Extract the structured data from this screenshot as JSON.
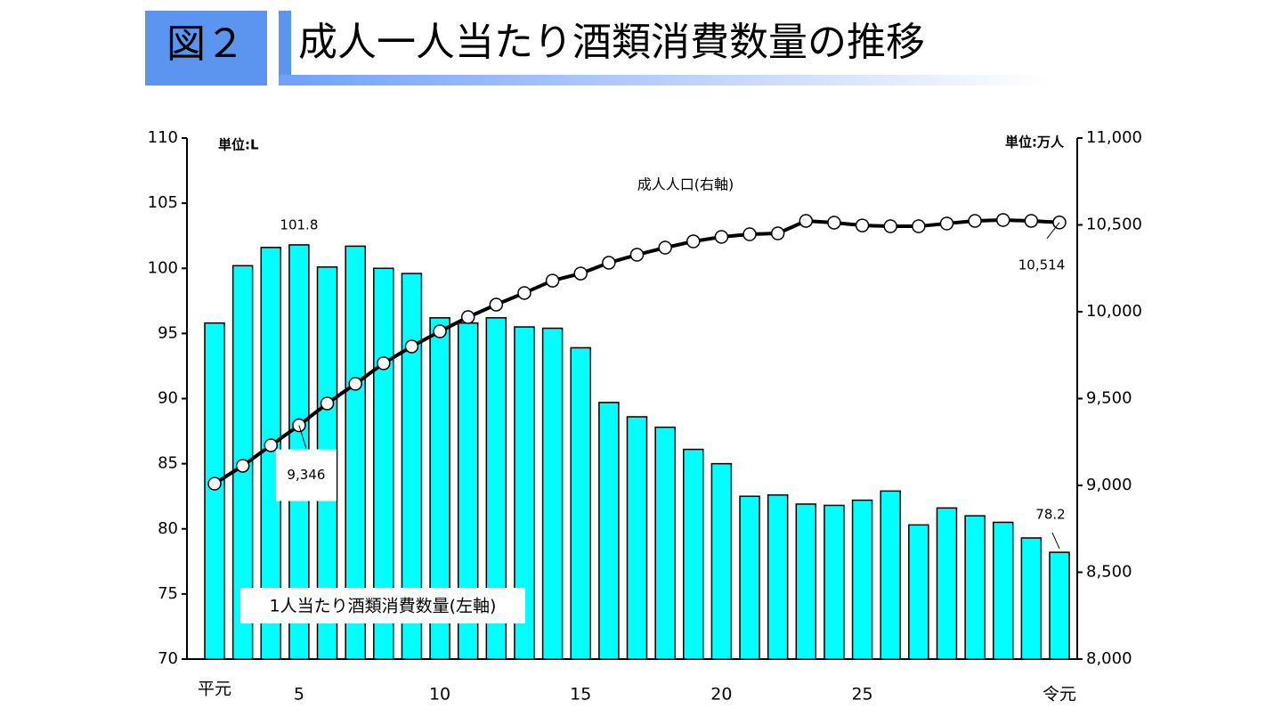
{
  "header": {
    "figure_label": "図２",
    "title": "成人一人当たり酒類消費数量の推移"
  },
  "chart_data": {
    "type": "bar_line",
    "categories": [
      "平元",
      null,
      null,
      "5",
      null,
      null,
      null,
      null,
      "10",
      null,
      null,
      null,
      null,
      "15",
      null,
      null,
      null,
      null,
      "20",
      null,
      null,
      null,
      null,
      "25",
      null,
      null,
      null,
      null,
      null,
      null,
      "令元"
    ],
    "y_unit_label": "単位:L",
    "y2_unit_label": "単位:万人",
    "ylim": [
      70,
      110
    ],
    "yticks": [
      70,
      75,
      80,
      85,
      90,
      95,
      100,
      105,
      110
    ],
    "y2lim": [
      8000,
      11000
    ],
    "y2ticks": [
      {
        "value": 8000,
        "label": "8,000"
      },
      {
        "value": 8500,
        "label": "8,500"
      },
      {
        "value": 9000,
        "label": "9,000"
      },
      {
        "value": 9500,
        "label": "9,500"
      },
      {
        "value": 10000,
        "label": "10,000"
      },
      {
        "value": 10500,
        "label": "10,500"
      },
      {
        "value": 11000,
        "label": "11,000"
      }
    ],
    "series": [
      {
        "name": "1人当たり酒類消費数量(左軸)",
        "type": "bar",
        "color": "#00ffff",
        "values": [
          95.8,
          100.2,
          101.6,
          101.8,
          100.1,
          101.7,
          100.0,
          99.6,
          96.2,
          95.8,
          96.2,
          95.5,
          95.4,
          93.9,
          89.7,
          88.6,
          87.8,
          86.1,
          85.0,
          82.5,
          82.6,
          81.9,
          81.8,
          82.2,
          82.9,
          80.3,
          81.6,
          81.0,
          80.5,
          79.3,
          78.2
        ],
        "value_labels": [
          null,
          null,
          null,
          "101.8",
          null,
          null,
          null,
          null,
          null,
          null,
          null,
          null,
          null,
          null,
          null,
          null,
          null,
          null,
          null,
          null,
          null,
          null,
          null,
          null,
          null,
          null,
          null,
          null,
          null,
          null,
          "78.2"
        ]
      },
      {
        "name": "成人人口(右軸)",
        "type": "line",
        "axis": "y2",
        "color": "#000000",
        "values": [
          9010,
          9113,
          9231,
          9346,
          9472,
          9585,
          9703,
          9800,
          9887,
          9969,
          10041,
          10108,
          10179,
          10220,
          10282,
          10328,
          10369,
          10405,
          10431,
          10446,
          10451,
          10523,
          10513,
          10497,
          10492,
          10492,
          10508,
          10523,
          10528,
          10523,
          10514
        ],
        "value_labels": [
          null,
          null,
          null,
          "9,346",
          null,
          null,
          null,
          null,
          null,
          null,
          null,
          null,
          null,
          null,
          null,
          null,
          null,
          null,
          null,
          null,
          null,
          null,
          null,
          null,
          null,
          null,
          null,
          null,
          null,
          null,
          "10,514"
        ]
      }
    ]
  }
}
